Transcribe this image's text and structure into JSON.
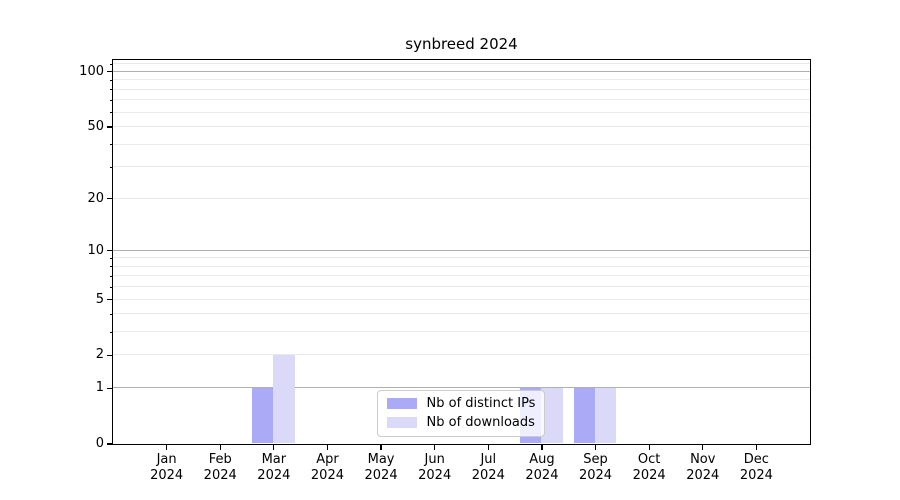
{
  "chart_data": {
    "type": "bar",
    "title": "synbreed 2024",
    "categories": [
      "Jan 2024",
      "Feb 2024",
      "Mar 2024",
      "Apr 2024",
      "May 2024",
      "Jun 2024",
      "Jul 2024",
      "Aug 2024",
      "Sep 2024",
      "Oct 2024",
      "Nov 2024",
      "Dec 2024"
    ],
    "series": [
      {
        "name": "Nb of distinct IPs",
        "color": "#aaaaf7",
        "values": [
          0,
          0,
          1,
          0,
          0,
          0,
          0,
          1,
          1,
          0,
          0,
          0
        ]
      },
      {
        "name": "Nb of downloads",
        "color": "#dadaf8",
        "values": [
          0,
          0,
          2,
          0,
          0,
          0,
          0,
          1,
          1,
          0,
          0,
          0
        ]
      }
    ],
    "xlabel": "",
    "ylabel": "",
    "y_axis": {
      "scale": "log1p",
      "tick_labels": [
        0,
        1,
        2,
        5,
        10,
        20,
        50,
        100
      ],
      "max": 116
    },
    "gridlines": {
      "major": [
        1,
        10,
        100
      ],
      "minor": [
        2,
        3,
        4,
        5,
        6,
        7,
        8,
        9,
        20,
        30,
        40,
        50,
        60,
        70,
        80,
        90,
        110
      ],
      "major_color": "#b0b0b0",
      "minor_color": "#eaeaea"
    },
    "legend_position": "lower center inside",
    "axis_color": "#000000",
    "background_color": "#ffffff"
  }
}
